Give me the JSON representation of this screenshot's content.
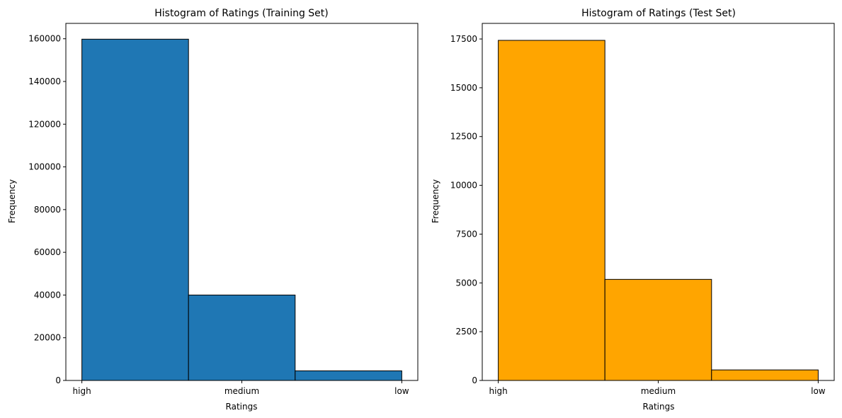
{
  "chart_data": [
    {
      "type": "bar",
      "title": "Histogram of Ratings (Training Set)",
      "xlabel": "Ratings",
      "ylabel": "Frequency",
      "categories": [
        "high",
        "medium",
        "low"
      ],
      "values": [
        159800,
        40000,
        4500
      ],
      "ylim": [
        0,
        167200
      ],
      "yticks": [
        0,
        20000,
        40000,
        60000,
        80000,
        100000,
        120000,
        140000,
        160000
      ],
      "color": "#1f77b4",
      "edge_color": "#000000",
      "grid": false
    },
    {
      "type": "bar",
      "title": "Histogram of Ratings (Test Set)",
      "xlabel": "Ratings",
      "ylabel": "Frequency",
      "categories": [
        "high",
        "medium",
        "low"
      ],
      "values": [
        17430,
        5180,
        540
      ],
      "ylim": [
        0,
        18300
      ],
      "yticks": [
        0,
        2500,
        5000,
        7500,
        10000,
        12500,
        15000,
        17500
      ],
      "color": "#ffa500",
      "edge_color": "#000000",
      "grid": false
    }
  ]
}
